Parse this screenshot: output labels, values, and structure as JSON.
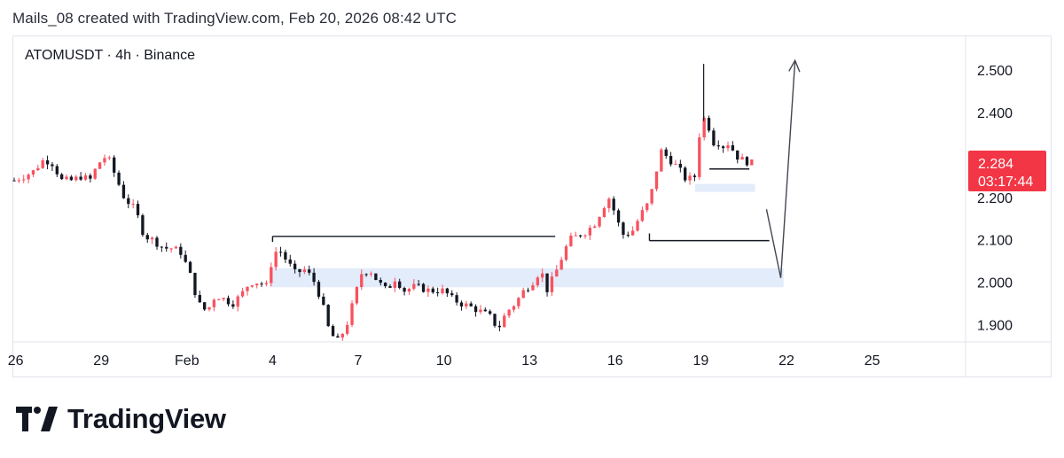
{
  "header": {
    "text": "Mails_08 created with TradingView.com, Feb 20, 2026 08:42 UTC"
  },
  "symbol_label": "ATOMUSDT · 4h · Binance",
  "brand": {
    "name": "TradingView"
  },
  "colors": {
    "up": "#f7525f",
    "down": "#131722",
    "price_tag": "#f23645",
    "zone": "#e3ecfb",
    "grid_border": "#e0e3eb",
    "axis_text": "#131722"
  },
  "chart_data": {
    "type": "candlestick",
    "symbol": "ATOMUSDT",
    "interval": "4h",
    "exchange": "Binance",
    "x_ticks": [
      {
        "label": "26",
        "day": 0
      },
      {
        "label": "29",
        "day": 3
      },
      {
        "label": "Feb",
        "day": 6
      },
      {
        "label": "4",
        "day": 9
      },
      {
        "label": "7",
        "day": 12
      },
      {
        "label": "10",
        "day": 15
      },
      {
        "label": "13",
        "day": 18
      },
      {
        "label": "16",
        "day": 21
      },
      {
        "label": "19",
        "day": 24
      },
      {
        "label": "22",
        "day": 27
      },
      {
        "label": "25",
        "day": 30
      }
    ],
    "y_ticks": [
      2.5,
      2.4,
      2.3,
      2.2,
      2.1,
      2.0,
      1.9
    ],
    "y_tick_labels": [
      "2.500",
      "2.400",
      "2.300",
      "2.200",
      "2.100",
      "2.000",
      "1.900"
    ],
    "ylim": [
      1.859,
      2.582
    ],
    "xlim_days": [
      -0.05,
      31.3
    ],
    "last_price": "2.284",
    "countdown": "03:17:44",
    "close_path": [
      [
        -0.05,
        2.24
      ],
      [
        0.6,
        2.26
      ],
      [
        1.0,
        2.29
      ],
      [
        1.3,
        2.28
      ],
      [
        1.6,
        2.24
      ],
      [
        2.0,
        2.24
      ],
      [
        2.3,
        2.25
      ],
      [
        2.6,
        2.24
      ],
      [
        2.9,
        2.28
      ],
      [
        3.2,
        2.3
      ],
      [
        3.5,
        2.25
      ],
      [
        3.8,
        2.2
      ],
      [
        4.2,
        2.17
      ],
      [
        4.5,
        2.11
      ],
      [
        4.8,
        2.1
      ],
      [
        5.2,
        2.08
      ],
      [
        5.5,
        2.08
      ],
      [
        5.8,
        2.07
      ],
      [
        6.1,
        2.02
      ],
      [
        6.4,
        1.95
      ],
      [
        6.7,
        1.93
      ],
      [
        7.0,
        1.97
      ],
      [
        7.3,
        1.96
      ],
      [
        7.6,
        1.95
      ],
      [
        7.9,
        1.97
      ],
      [
        8.2,
        2.0
      ],
      [
        8.5,
        2.0
      ],
      [
        8.8,
        1.99
      ],
      [
        9.0,
        2.06
      ],
      [
        9.2,
        2.08
      ],
      [
        9.5,
        2.05
      ],
      [
        9.8,
        2.02
      ],
      [
        10.1,
        2.03
      ],
      [
        10.4,
        2.01
      ],
      [
        10.7,
        1.96
      ],
      [
        11.0,
        1.88
      ],
      [
        11.3,
        1.86
      ],
      [
        11.6,
        1.9
      ],
      [
        11.9,
        1.97
      ],
      [
        12.1,
        2.02
      ],
      [
        12.4,
        2.03
      ],
      [
        12.7,
        2.0
      ],
      [
        13.0,
        1.98
      ],
      [
        13.3,
        2.01
      ],
      [
        13.6,
        1.98
      ],
      [
        14.0,
        1.99
      ],
      [
        14.5,
        1.98
      ],
      [
        15.0,
        1.98
      ],
      [
        15.3,
        1.96
      ],
      [
        15.6,
        1.95
      ],
      [
        16.0,
        1.94
      ],
      [
        16.3,
        1.93
      ],
      [
        16.6,
        1.92
      ],
      [
        16.9,
        1.89
      ],
      [
        17.2,
        1.93
      ],
      [
        17.5,
        1.95
      ],
      [
        17.8,
        1.98
      ],
      [
        18.1,
        2.0
      ],
      [
        18.4,
        2.03
      ],
      [
        18.6,
        1.98
      ],
      [
        18.9,
        2.02
      ],
      [
        19.2,
        2.07
      ],
      [
        19.4,
        2.1
      ],
      [
        19.7,
        2.11
      ],
      [
        20.0,
        2.12
      ],
      [
        20.3,
        2.14
      ],
      [
        20.6,
        2.18
      ],
      [
        20.8,
        2.2
      ],
      [
        21.1,
        2.14
      ],
      [
        21.3,
        2.11
      ],
      [
        21.6,
        2.12
      ],
      [
        21.9,
        2.16
      ],
      [
        22.2,
        2.19
      ],
      [
        22.4,
        2.25
      ],
      [
        22.6,
        2.31
      ],
      [
        22.9,
        2.29
      ],
      [
        23.2,
        2.27
      ],
      [
        23.5,
        2.24
      ],
      [
        23.8,
        2.25
      ],
      [
        24.0,
        2.38
      ],
      [
        24.2,
        2.39
      ],
      [
        24.4,
        2.33
      ],
      [
        24.6,
        2.33
      ],
      [
        24.8,
        2.32
      ],
      [
        25.0,
        2.33
      ],
      [
        25.2,
        2.3
      ],
      [
        25.4,
        2.29
      ],
      [
        25.6,
        2.285
      ],
      [
        25.8,
        2.28
      ]
    ],
    "annotations": {
      "supply_demand_zones": [
        {
          "day_from": -3.1,
          "day_to": 6.2,
          "price_top": 2.033,
          "price_bottom": 1.988
        },
        {
          "day_from": -1.4,
          "day_to": 7.0,
          "price_top": 2.232,
          "price_bottom": 2.213
        }
      ],
      "horizontal_levels": [
        {
          "day_from": 9.0,
          "day_to": 18.9,
          "price": 2.108
        },
        {
          "day_from": 22.2,
          "day_to": 26.4,
          "price": 2.098
        },
        {
          "day_from": 24.3,
          "day_to": 25.7,
          "price": 2.267
        }
      ],
      "projection_path": [
        [
          26.3,
          2.172
        ],
        [
          26.8,
          2.01
        ],
        [
          27.3,
          2.523
        ]
      ]
    }
  }
}
